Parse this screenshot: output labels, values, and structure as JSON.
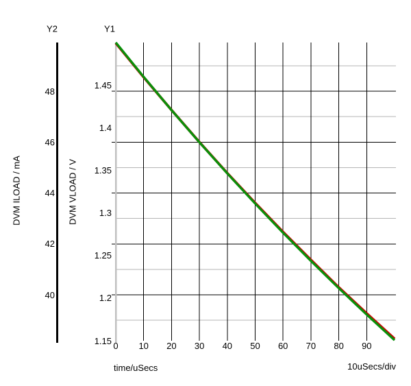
{
  "axes": {
    "y2": {
      "title": "Y2",
      "unit_label": "DVM ILOAD / mA",
      "tick_labels": [
        "48",
        "46",
        "44",
        "42",
        "40"
      ],
      "minor_grid_values": [
        49,
        47,
        45,
        43,
        41,
        39
      ]
    },
    "y1": {
      "title": "Y1",
      "unit_label": "DVM VLOAD / V",
      "tick_labels": [
        "1.45",
        "1.4",
        "1.35",
        "1.3",
        "1.25",
        "1.2",
        "1.15"
      ]
    },
    "x": {
      "tick_labels": [
        "0",
        "10",
        "20",
        "30",
        "40",
        "50",
        "60",
        "70",
        "80",
        "90"
      ],
      "axis_label": "time/uSecs",
      "div_label": "10uSecs/div"
    }
  },
  "colors": {
    "vload_trace": "#0a8f0a",
    "iload_trace": "#cc0000",
    "grid_major": "#000000",
    "grid_minor": "#b4b4b4",
    "y1_axis_line": "#c0c0c0",
    "y2_axis_bar": "#000000",
    "text": "#000000",
    "background": "#ffffff"
  },
  "chart_data": {
    "type": "line",
    "title": "",
    "xlabel": "time/uSecs",
    "x_divisions_label": "10uSecs/div",
    "x": [
      0,
      10,
      20,
      30,
      40,
      50,
      60,
      70,
      80,
      90,
      100
    ],
    "xlim": [
      0,
      100
    ],
    "grid": {
      "vertical_major_every_uSecs": 10,
      "horizontal_major_every_mA": 2,
      "horizontal_minor_every_mA": 1,
      "legend": "none",
      "note": "no top or right border line; grid open on top/right"
    },
    "y1_axis": {
      "label": "DVM VLOAD / V",
      "range": [
        1.15,
        1.5
      ],
      "tick_step": 0.05
    },
    "y2_axis": {
      "label": "DVM ILOAD / mA",
      "range": [
        38.2,
        49.9
      ],
      "major_ticks": [
        48,
        46,
        44,
        42,
        40
      ]
    },
    "series": [
      {
        "name": "DVM VLOAD",
        "axis": "Y1",
        "unit": "V",
        "color": "#0a8f0a",
        "values": [
          1.5,
          1.4597,
          1.4207,
          1.3829,
          1.3464,
          1.311,
          1.2768,
          1.2437,
          1.2117,
          1.1807,
          1.1507
        ]
      },
      {
        "name": "DVM ILOAD",
        "axis": "Y2",
        "unit": "mA",
        "color": "#cc0000",
        "values": [
          49.89,
          48.55,
          47.26,
          46.0,
          44.78,
          43.61,
          42.47,
          41.37,
          40.29,
          39.27,
          38.27
        ],
        "note": "coincident with DVM VLOAD trace; almost entirely hidden beneath it"
      }
    ]
  }
}
